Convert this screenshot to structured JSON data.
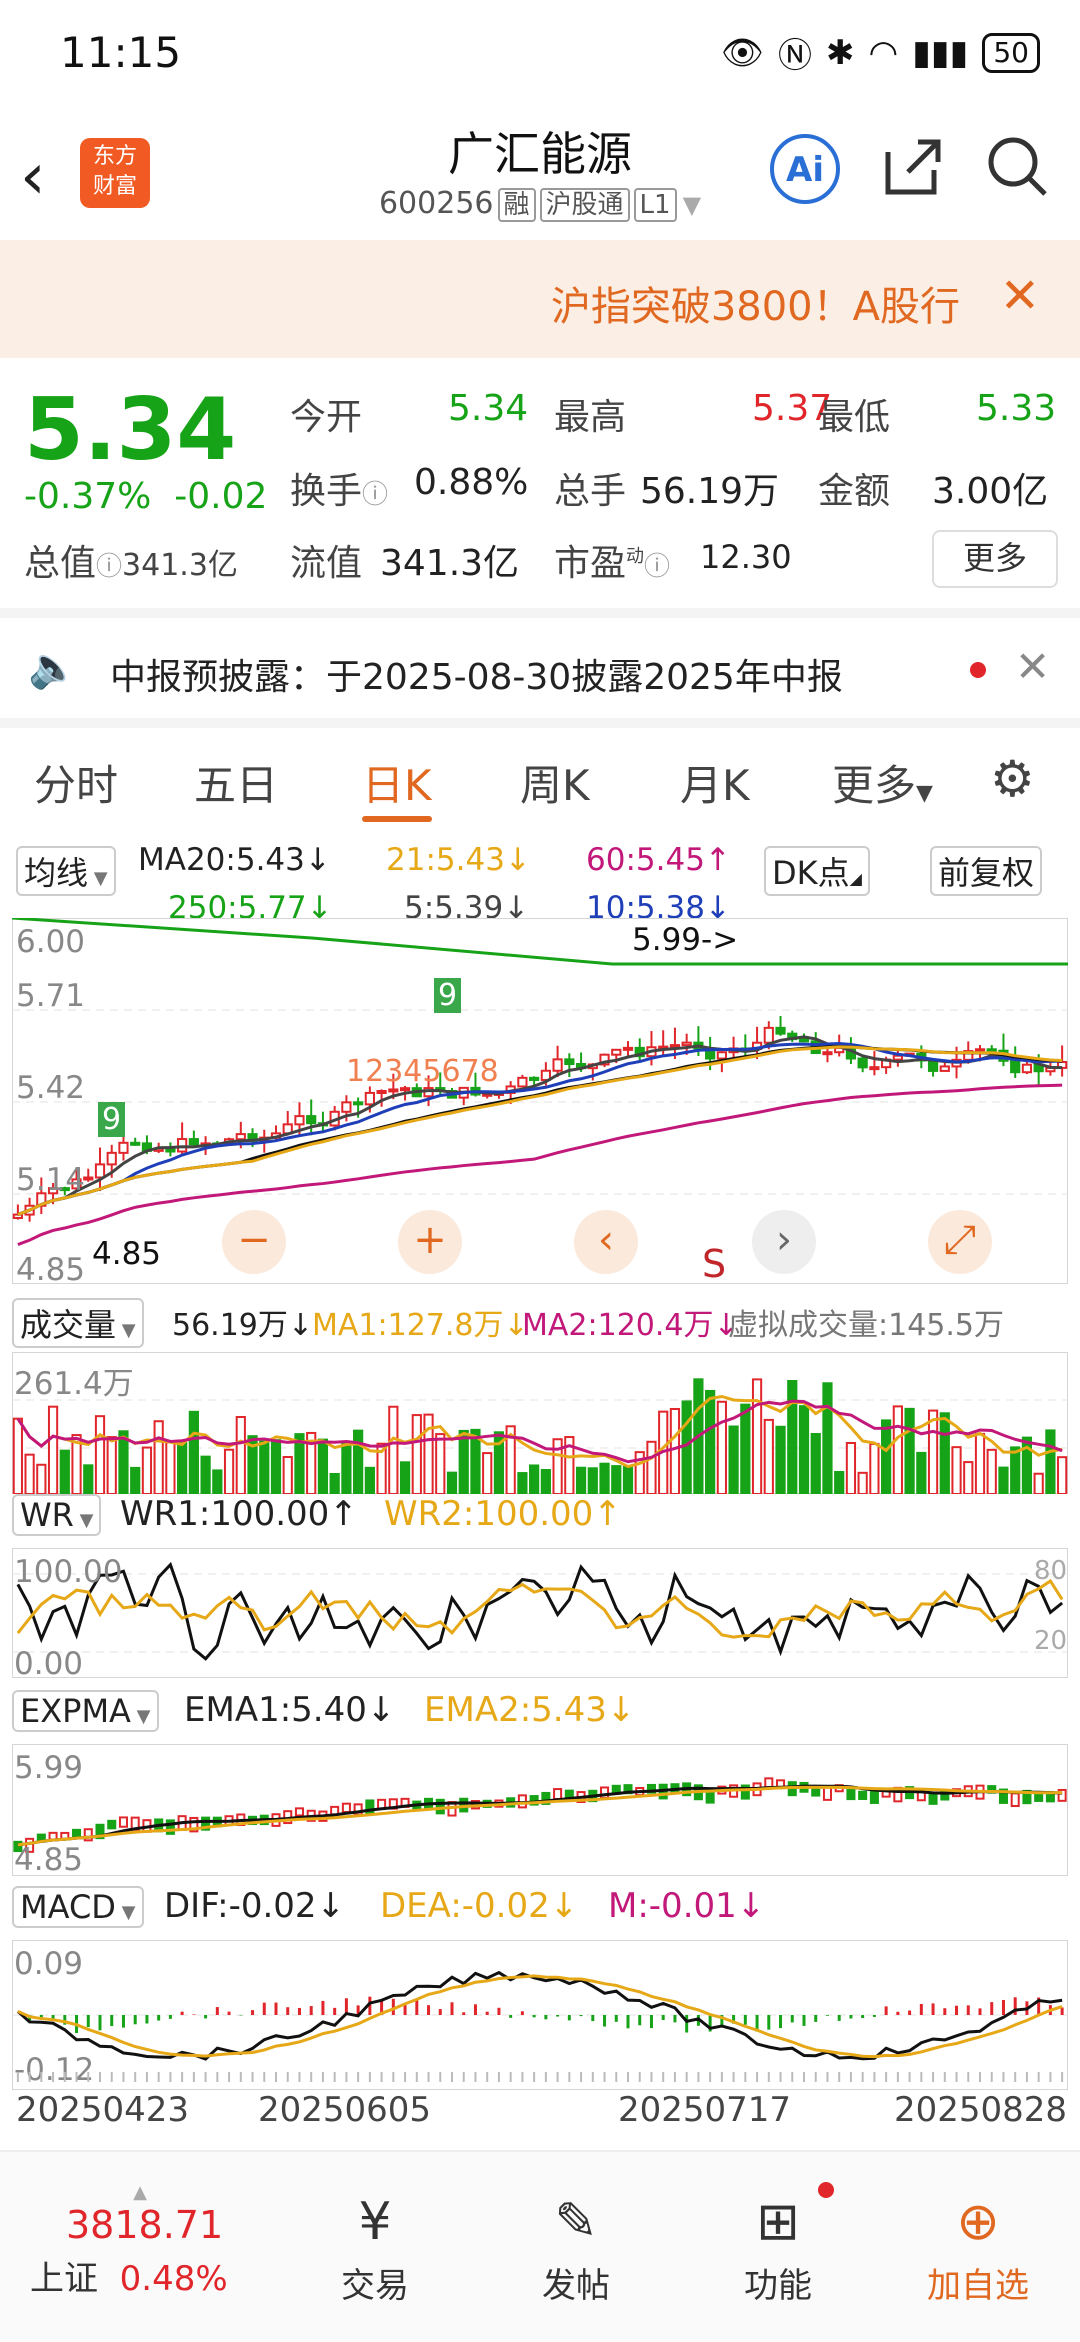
{
  "status": {
    "time": "11:15",
    "battery": "50"
  },
  "header": {
    "title": "广汇能源",
    "code": "600256",
    "tag_rong": "融",
    "tag_hgt": "沪股通",
    "tag_l1": "L1",
    "logo_line1": "东方",
    "logo_line2": "财富",
    "ai_label": "Ai"
  },
  "banner": {
    "text": "沪指突破3800！A股行"
  },
  "quote": {
    "price": "5.34",
    "change_pct": "-0.37%",
    "change": "-0.02",
    "total_cap_label": "总值",
    "total_cap": "341.3亿",
    "open_label": "今开",
    "open": "5.34",
    "high_label": "最高",
    "high": "5.37",
    "low_label": "最低",
    "low": "5.33",
    "turnover_label": "换手",
    "turnover": "0.88%",
    "volume_label": "总手",
    "volume": "56.19万",
    "amount_label": "金额",
    "amount": "3.00亿",
    "float_label": "流值",
    "float_cap": "341.3亿",
    "pe_label": "市盈",
    "pe_sup": "动",
    "pe": "12.30",
    "more_label": "更多"
  },
  "notice": {
    "text": "中报预披露：于2025-08-30披露2025年中报"
  },
  "tabs": [
    "分时",
    "五日",
    "日K",
    "周K",
    "月K",
    "更多"
  ],
  "active_tab": "日K",
  "kline": {
    "ma_selector": "均线",
    "ma20": "MA20:5.43↓",
    "ma21": "21:5.43↓",
    "ma60": "60:5.45↑",
    "ma250": "250:5.77↓",
    "ma5": "5:5.39↓",
    "ma10": "10:5.38↓",
    "dk_label": "DK点",
    "adjust_label": "前复权",
    "y_labels": [
      "6.00",
      "5.71",
      "5.42",
      "5.14",
      "4.85"
    ],
    "max_label": "5.99->",
    "min_label": "4.85",
    "s_label": "S",
    "td_nums_a": [
      "1",
      "2",
      "3",
      "4",
      "5",
      "6",
      "7",
      "8"
    ],
    "td_nine": "9"
  },
  "volume": {
    "selector": "成交量",
    "vol": "56.19万↓",
    "ma1": "MA1:127.8万↓",
    "ma2": "MA2:120.4万↓",
    "virtual": "虚拟成交量:145.5万",
    "ymax": "261.4万"
  },
  "wr": {
    "selector": "WR",
    "wr1": "WR1:100.00↑",
    "wr2": "WR2:100.00↑",
    "y_top": "100.00",
    "y_bot": "0.00",
    "r80": "80",
    "r20": "20"
  },
  "expma": {
    "selector": "EXPMA",
    "ema1": "EMA1:5.40↓",
    "ema2": "EMA2:5.43↓",
    "y_top": "5.99",
    "y_bot": "4.85"
  },
  "macd": {
    "selector": "MACD",
    "dif": "DIF:-0.02↓",
    "dea": "DEA:-0.02↓",
    "m": "M:-0.01↓",
    "y_top": "0.09",
    "y_bot": "-0.12"
  },
  "dates": [
    "20250423",
    "20250605",
    "20250717",
    "20250828"
  ],
  "nav": {
    "index_value": "3818.71",
    "index_name": "上证",
    "index_change": "0.48%",
    "trade": "交易",
    "post": "发帖",
    "func": "功能",
    "add": "加自选"
  },
  "colors": {
    "up": "#e0262a",
    "down": "#17a317",
    "accent": "#e06820"
  }
}
